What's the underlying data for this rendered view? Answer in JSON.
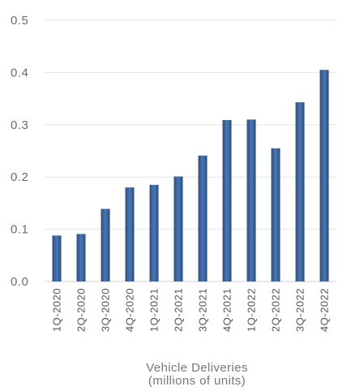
{
  "chart_data": {
    "type": "bar",
    "title": "",
    "xlabel": "Vehicle Deliveries",
    "xlabel_sub": "(millions of units)",
    "ylabel": "",
    "ylim": [
      0,
      0.5
    ],
    "yticks": [
      "0.0",
      "0.1",
      "0.2",
      "0.3",
      "0.4",
      "0.5"
    ],
    "categories": [
      "1Q-2020",
      "2Q-2020",
      "3Q-2020",
      "4Q-2020",
      "1Q-2021",
      "2Q-2021",
      "3Q-2021",
      "4Q-2021",
      "1Q-2022",
      "2Q-2022",
      "3Q-2022",
      "4Q-2022"
    ],
    "values": [
      0.088,
      0.091,
      0.139,
      0.18,
      0.185,
      0.201,
      0.241,
      0.309,
      0.31,
      0.255,
      0.343,
      0.405
    ],
    "grid": true,
    "bar_color_light": "#4a78b4",
    "bar_color_dark": "#2d4d7d"
  }
}
